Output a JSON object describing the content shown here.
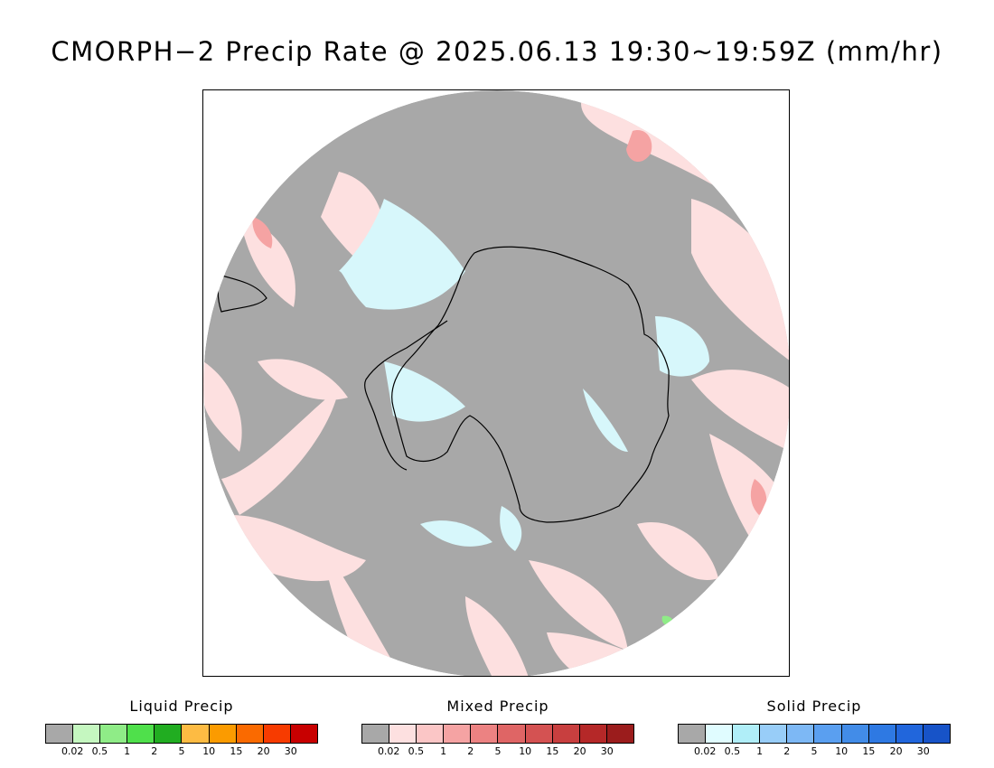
{
  "title": "CMORPH−2 Precip Rate @ 2025.06.13 19:30~19:59Z (mm/hr)",
  "map": {
    "projection": "south-polar-stereographic",
    "background_color": "#a8a8a8",
    "mixed_light_color": "#fde0e0",
    "solid_light_color": "#d7f7fb",
    "coastline_color": "#000000"
  },
  "legends": [
    {
      "title": "Liquid Precip",
      "colors": [
        "#a8a8a8",
        "#c5f7c0",
        "#8fec87",
        "#4fe04b",
        "#21ad21",
        "#fdbb43",
        "#fb9b00",
        "#fa6a00",
        "#f73b00",
        "#c80000"
      ],
      "ticks": [
        "0.02",
        "0.5",
        "1",
        "2",
        "5",
        "10",
        "15",
        "20",
        "30"
      ]
    },
    {
      "title": "Mixed Precip",
      "colors": [
        "#a8a8a8",
        "#fde0e0",
        "#fbc6c6",
        "#f5a3a3",
        "#ec8282",
        "#df6565",
        "#d45252",
        "#c83f3f",
        "#b52828",
        "#9b1c1c"
      ],
      "ticks": [
        "0.02",
        "0.5",
        "1",
        "2",
        "5",
        "10",
        "15",
        "20",
        "30"
      ]
    },
    {
      "title": "Solid Precip",
      "colors": [
        "#a8a8a8",
        "#e0fcff",
        "#b0eef8",
        "#98cdf8",
        "#7db8f5",
        "#5a9ff0",
        "#428ce8",
        "#2e79e3",
        "#2166dc",
        "#1753c8"
      ],
      "ticks": [
        "0.02",
        "0.5",
        "1",
        "2",
        "5",
        "10",
        "15",
        "20",
        "30"
      ]
    }
  ]
}
